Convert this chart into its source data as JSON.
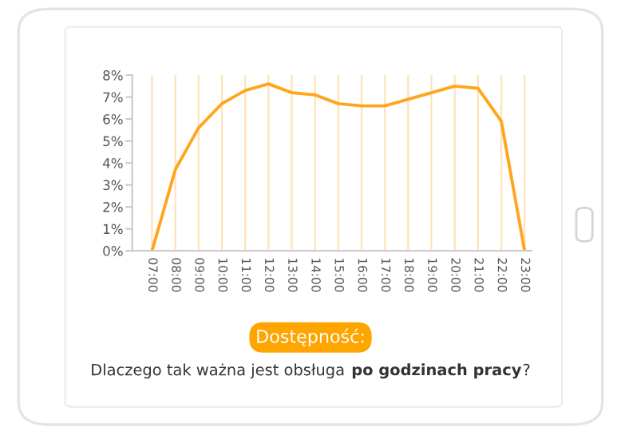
{
  "chart_data": {
    "type": "line",
    "categories": [
      "07:00",
      "08:00",
      "09:00",
      "10:00",
      "11:00",
      "12:00",
      "13:00",
      "14:00",
      "15:00",
      "16:00",
      "17:00",
      "18:00",
      "19:00",
      "20:00",
      "21:00",
      "22:00",
      "23:00"
    ],
    "series": [
      {
        "color": "#ffa61c",
        "values": [
          0,
          3.7,
          5.6,
          6.7,
          7.3,
          7.6,
          7.2,
          7.1,
          6.7,
          6.6,
          6.6,
          6.9,
          7.2,
          7.5,
          7.4,
          5.9,
          0
        ]
      }
    ],
    "ylim": [
      0,
      8
    ],
    "yticks": [
      {
        "value": 0,
        "label": "0%"
      },
      {
        "value": 1,
        "label": "1%"
      },
      {
        "value": 2,
        "label": "2%"
      },
      {
        "value": 3,
        "label": "3%"
      },
      {
        "value": 4,
        "label": "4%"
      },
      {
        "value": 5,
        "label": "5%"
      },
      {
        "value": 6,
        "label": "6%"
      },
      {
        "value": 7,
        "label": "7%"
      },
      {
        "value": 8,
        "label": "8%"
      }
    ],
    "grid": "x",
    "legend": false,
    "marker": "none",
    "line_style": "solid",
    "title": "Dostępność:",
    "annotations": [
      "Dlaczego tak ważna jest obsługa ",
      "po godzinach pracy",
      "?"
    ]
  }
}
